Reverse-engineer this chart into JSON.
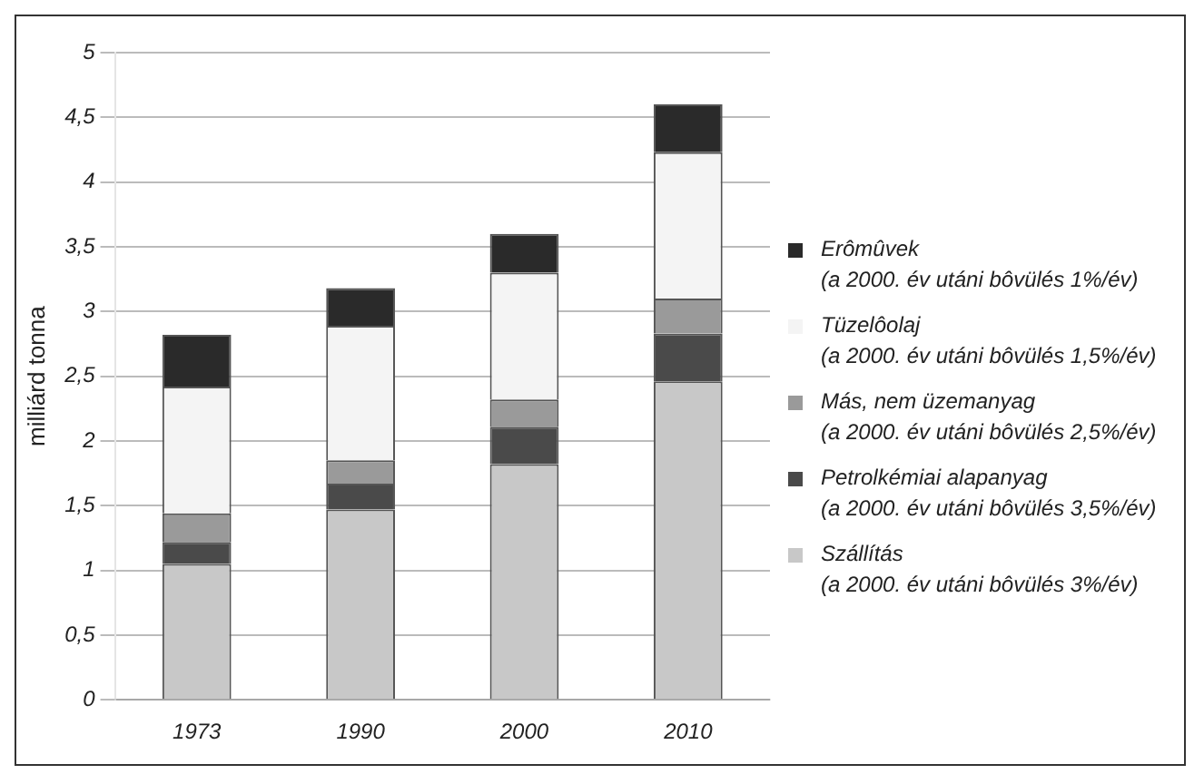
{
  "chart_data": {
    "type": "bar",
    "stacked": true,
    "ylabel": "milliárd tonna",
    "categories": [
      "1973",
      "1990",
      "2000",
      "2010"
    ],
    "series": [
      {
        "name": "Szállítás\n(a 2000. év utáni bôvülés 3%/év)",
        "color": "#c8c8c8",
        "values": [
          1.05,
          1.47,
          1.82,
          2.46
        ]
      },
      {
        "name": "Petrolkémiai alapanyag\n(a 2000. év utáni bôvülés 3,5%/év)",
        "color": "#4a4a4a",
        "values": [
          0.17,
          0.2,
          0.29,
          0.37
        ]
      },
      {
        "name": "Más, nem üzemanyag\n(a 2000. év utáni bôvülés 2,5%/év)",
        "color": "#9a9a9a",
        "values": [
          0.22,
          0.18,
          0.21,
          0.27
        ]
      },
      {
        "name": "Tüzelôolaj\n(a 2000. év utáni bôvülés 1,5%/év)",
        "color": "#f4f4f4",
        "values": [
          0.98,
          1.04,
          0.98,
          1.13
        ]
      },
      {
        "name": "Erômûvek\n(a 2000. év utáni bôvülés 1%/év)",
        "color": "#2a2a2a",
        "values": [
          0.4,
          0.29,
          0.3,
          0.37
        ]
      }
    ],
    "ylim": [
      0,
      5
    ],
    "yticks": [
      0,
      {
        "value": 0.5,
        "label": "0,5"
      },
      1,
      {
        "value": 1.5,
        "label": "1,5"
      },
      2,
      {
        "value": 2.5,
        "label": "2,5"
      },
      3,
      {
        "value": 3.5,
        "label": "3,5"
      },
      4,
      {
        "value": 4.5,
        "label": "4,5"
      },
      5
    ],
    "grid": "y",
    "legend": "right"
  }
}
